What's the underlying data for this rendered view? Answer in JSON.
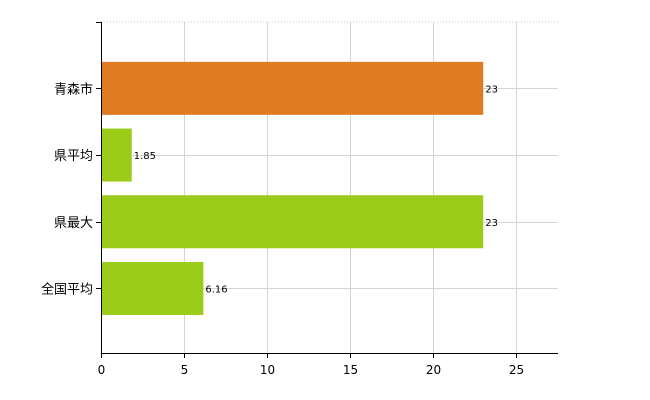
{
  "chart_data": {
    "type": "bar",
    "orientation": "horizontal",
    "categories": [
      "青森市",
      "県平均",
      "県最大",
      "全国平均"
    ],
    "values": [
      23,
      1.85,
      23,
      6.16
    ],
    "value_labels": [
      "23",
      "1.85",
      "23",
      "6.16"
    ],
    "bar_colors": [
      "#e07b22",
      "#9ccc1a",
      "#9ccc1a",
      "#9ccc1a"
    ],
    "xlim": [
      0,
      27.5
    ],
    "xticks": [
      0,
      5,
      10,
      15,
      20,
      25
    ],
    "xtick_labels": [
      "0",
      "5",
      "10",
      "15",
      "20",
      "25"
    ],
    "grid": true,
    "title": "",
    "xlabel": "",
    "ylabel": ""
  }
}
